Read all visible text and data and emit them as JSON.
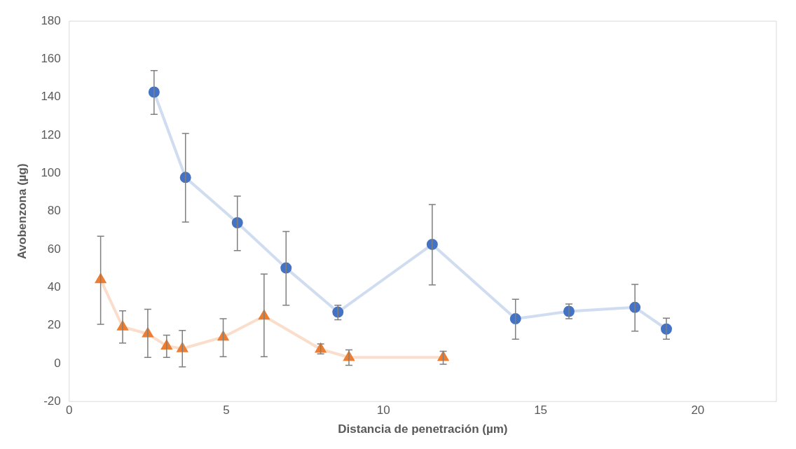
{
  "chart_data": {
    "type": "scatter",
    "xlabel": "Distancia de penetración (µm)",
    "ylabel": "Avobenzona (µg)",
    "xlim": [
      0,
      22.5
    ],
    "xticks": [
      0,
      5,
      10,
      15,
      20
    ],
    "ylim": [
      -20,
      180
    ],
    "yticks": [
      -20,
      0,
      20,
      40,
      60,
      80,
      100,
      120,
      140,
      160,
      180
    ],
    "grid": false,
    "legend": false,
    "series": [
      {
        "type": "line",
        "marker": "circle",
        "color": "#4472c4",
        "x": [
          2.7,
          3.7,
          5.35,
          6.9,
          8.55,
          11.55,
          14.2,
          15.9,
          18,
          19
        ],
        "values": [
          142.7,
          97.8,
          74,
          50.2,
          27,
          62.6,
          23.5,
          27.4,
          29.5,
          18.1
        ],
        "errors": [
          [
            131,
            154
          ],
          [
            74.4,
            121
          ],
          [
            59.4,
            88
          ],
          [
            30.6,
            69.4
          ],
          [
            23,
            30.6
          ],
          [
            41.3,
            83.6
          ],
          [
            12.8,
            33.8
          ],
          [
            23.5,
            31.3
          ],
          [
            17,
            41.6
          ],
          [
            12.8,
            23.8
          ]
        ]
      },
      {
        "type": "line",
        "marker": "triangle",
        "color": "#ed7d31",
        "x": [
          1,
          1.7,
          2.5,
          3.1,
          3.6,
          4.9,
          6.2,
          8,
          8.9,
          11.9
        ],
        "values": [
          44.1,
          19.2,
          15.6,
          9.2,
          7.8,
          13.9,
          24.9,
          7.5,
          3.2,
          3.2
        ],
        "errors": [
          [
            20.6,
            66.9
          ],
          [
            10.7,
            27.7
          ],
          [
            3.2,
            28.5
          ],
          [
            3.2,
            14.9
          ],
          [
            -1.8,
            17.4
          ],
          [
            3.6,
            23.5
          ],
          [
            3.6,
            47
          ],
          [
            5,
            10.3
          ],
          [
            -1,
            7.1
          ],
          [
            -0.4,
            6.4
          ]
        ]
      }
    ]
  }
}
